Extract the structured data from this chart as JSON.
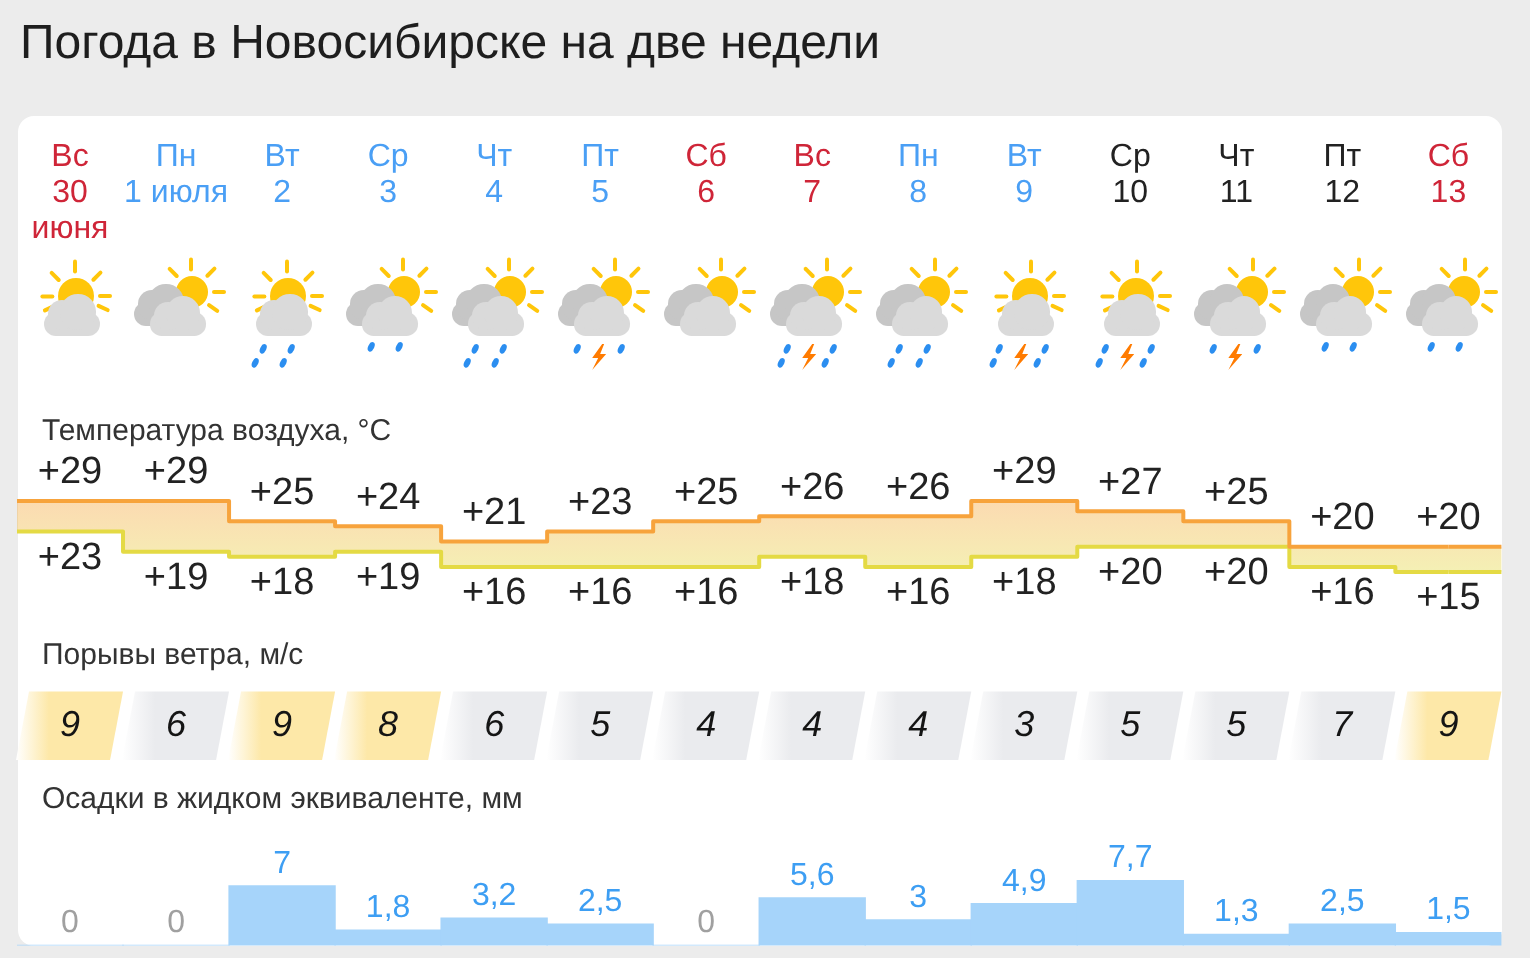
{
  "chart_data": [
    {
      "type": "other",
      "title": "Погода в Новосибирске на две недели"
    },
    {
      "type": "step",
      "title": "Температура воздуха, °C",
      "categories": [
        "Вс 30 июня",
        "Пн 1 июля",
        "Вт 2",
        "Ср 3",
        "Чт 4",
        "Пт 5",
        "Сб 6",
        "Вс 7",
        "Пн 8",
        "Вт 9",
        "Ср 10",
        "Чт 11",
        "Пт 12",
        "Сб 13"
      ],
      "series": [
        {
          "color": "#f7a33c",
          "values": [
            29,
            29,
            25,
            24,
            21,
            23,
            25,
            26,
            26,
            29,
            27,
            25,
            20,
            20
          ],
          "value_labels": [
            "+29",
            "+29",
            "+25",
            "+24",
            "+21",
            "+23",
            "+25",
            "+26",
            "+26",
            "+29",
            "+27",
            "+25",
            "+20",
            "+20"
          ]
        },
        {
          "color": "#e4da44",
          "values": [
            23,
            19,
            18,
            19,
            16,
            16,
            16,
            18,
            16,
            18,
            20,
            20,
            16,
            15
          ],
          "value_labels": [
            "+23",
            "+19",
            "+18",
            "+19",
            "+16",
            "+16",
            "+16",
            "+18",
            "+16",
            "+18",
            "+20",
            "+20",
            "+16",
            "+15"
          ]
        }
      ],
      "tick_labels": "x"
    },
    {
      "type": "heatmap",
      "title": "Порывы ветра, м/с",
      "categories": [
        null,
        null,
        null,
        null,
        null,
        null,
        null,
        null,
        null,
        null,
        null,
        null,
        null,
        null
      ],
      "y_categories": [
        null
      ],
      "cells": [
        [
          9,
          6,
          9,
          8,
          6,
          5,
          4,
          4,
          4,
          3,
          5,
          5,
          7,
          9
        ]
      ],
      "colors": [
        "#fde8a8",
        "#eaebee",
        "#fde8a8",
        "#fde8a8",
        "#eaebee",
        "#eaebee",
        "#eaebee",
        "#eaebee",
        "#eaebee",
        "#eaebee",
        "#eaebee",
        "#eaebee",
        "#eaebee",
        "#fde8a8"
      ],
      "data_labels": true,
      "tick_labels": false
    },
    {
      "type": "bar",
      "title": "Осадки в жидком эквиваленте, мм",
      "categories": [
        null,
        null,
        null,
        null,
        null,
        null,
        null,
        null,
        null,
        null,
        null,
        null,
        null,
        null
      ],
      "values": [
        0,
        0,
        7,
        1.8,
        3.2,
        2.5,
        0,
        5.6,
        3,
        4.9,
        7.7,
        1.3,
        2.5,
        1.5
      ],
      "value_labels": [
        "0",
        "0",
        "7",
        "1,8",
        "3,2",
        "2,5",
        "0",
        "5,6",
        "3",
        "4,9",
        "7,7",
        "1,3",
        "2,5",
        "1,5"
      ],
      "color": "#a6d4fa",
      "tick_labels": false
    }
  ]
}
